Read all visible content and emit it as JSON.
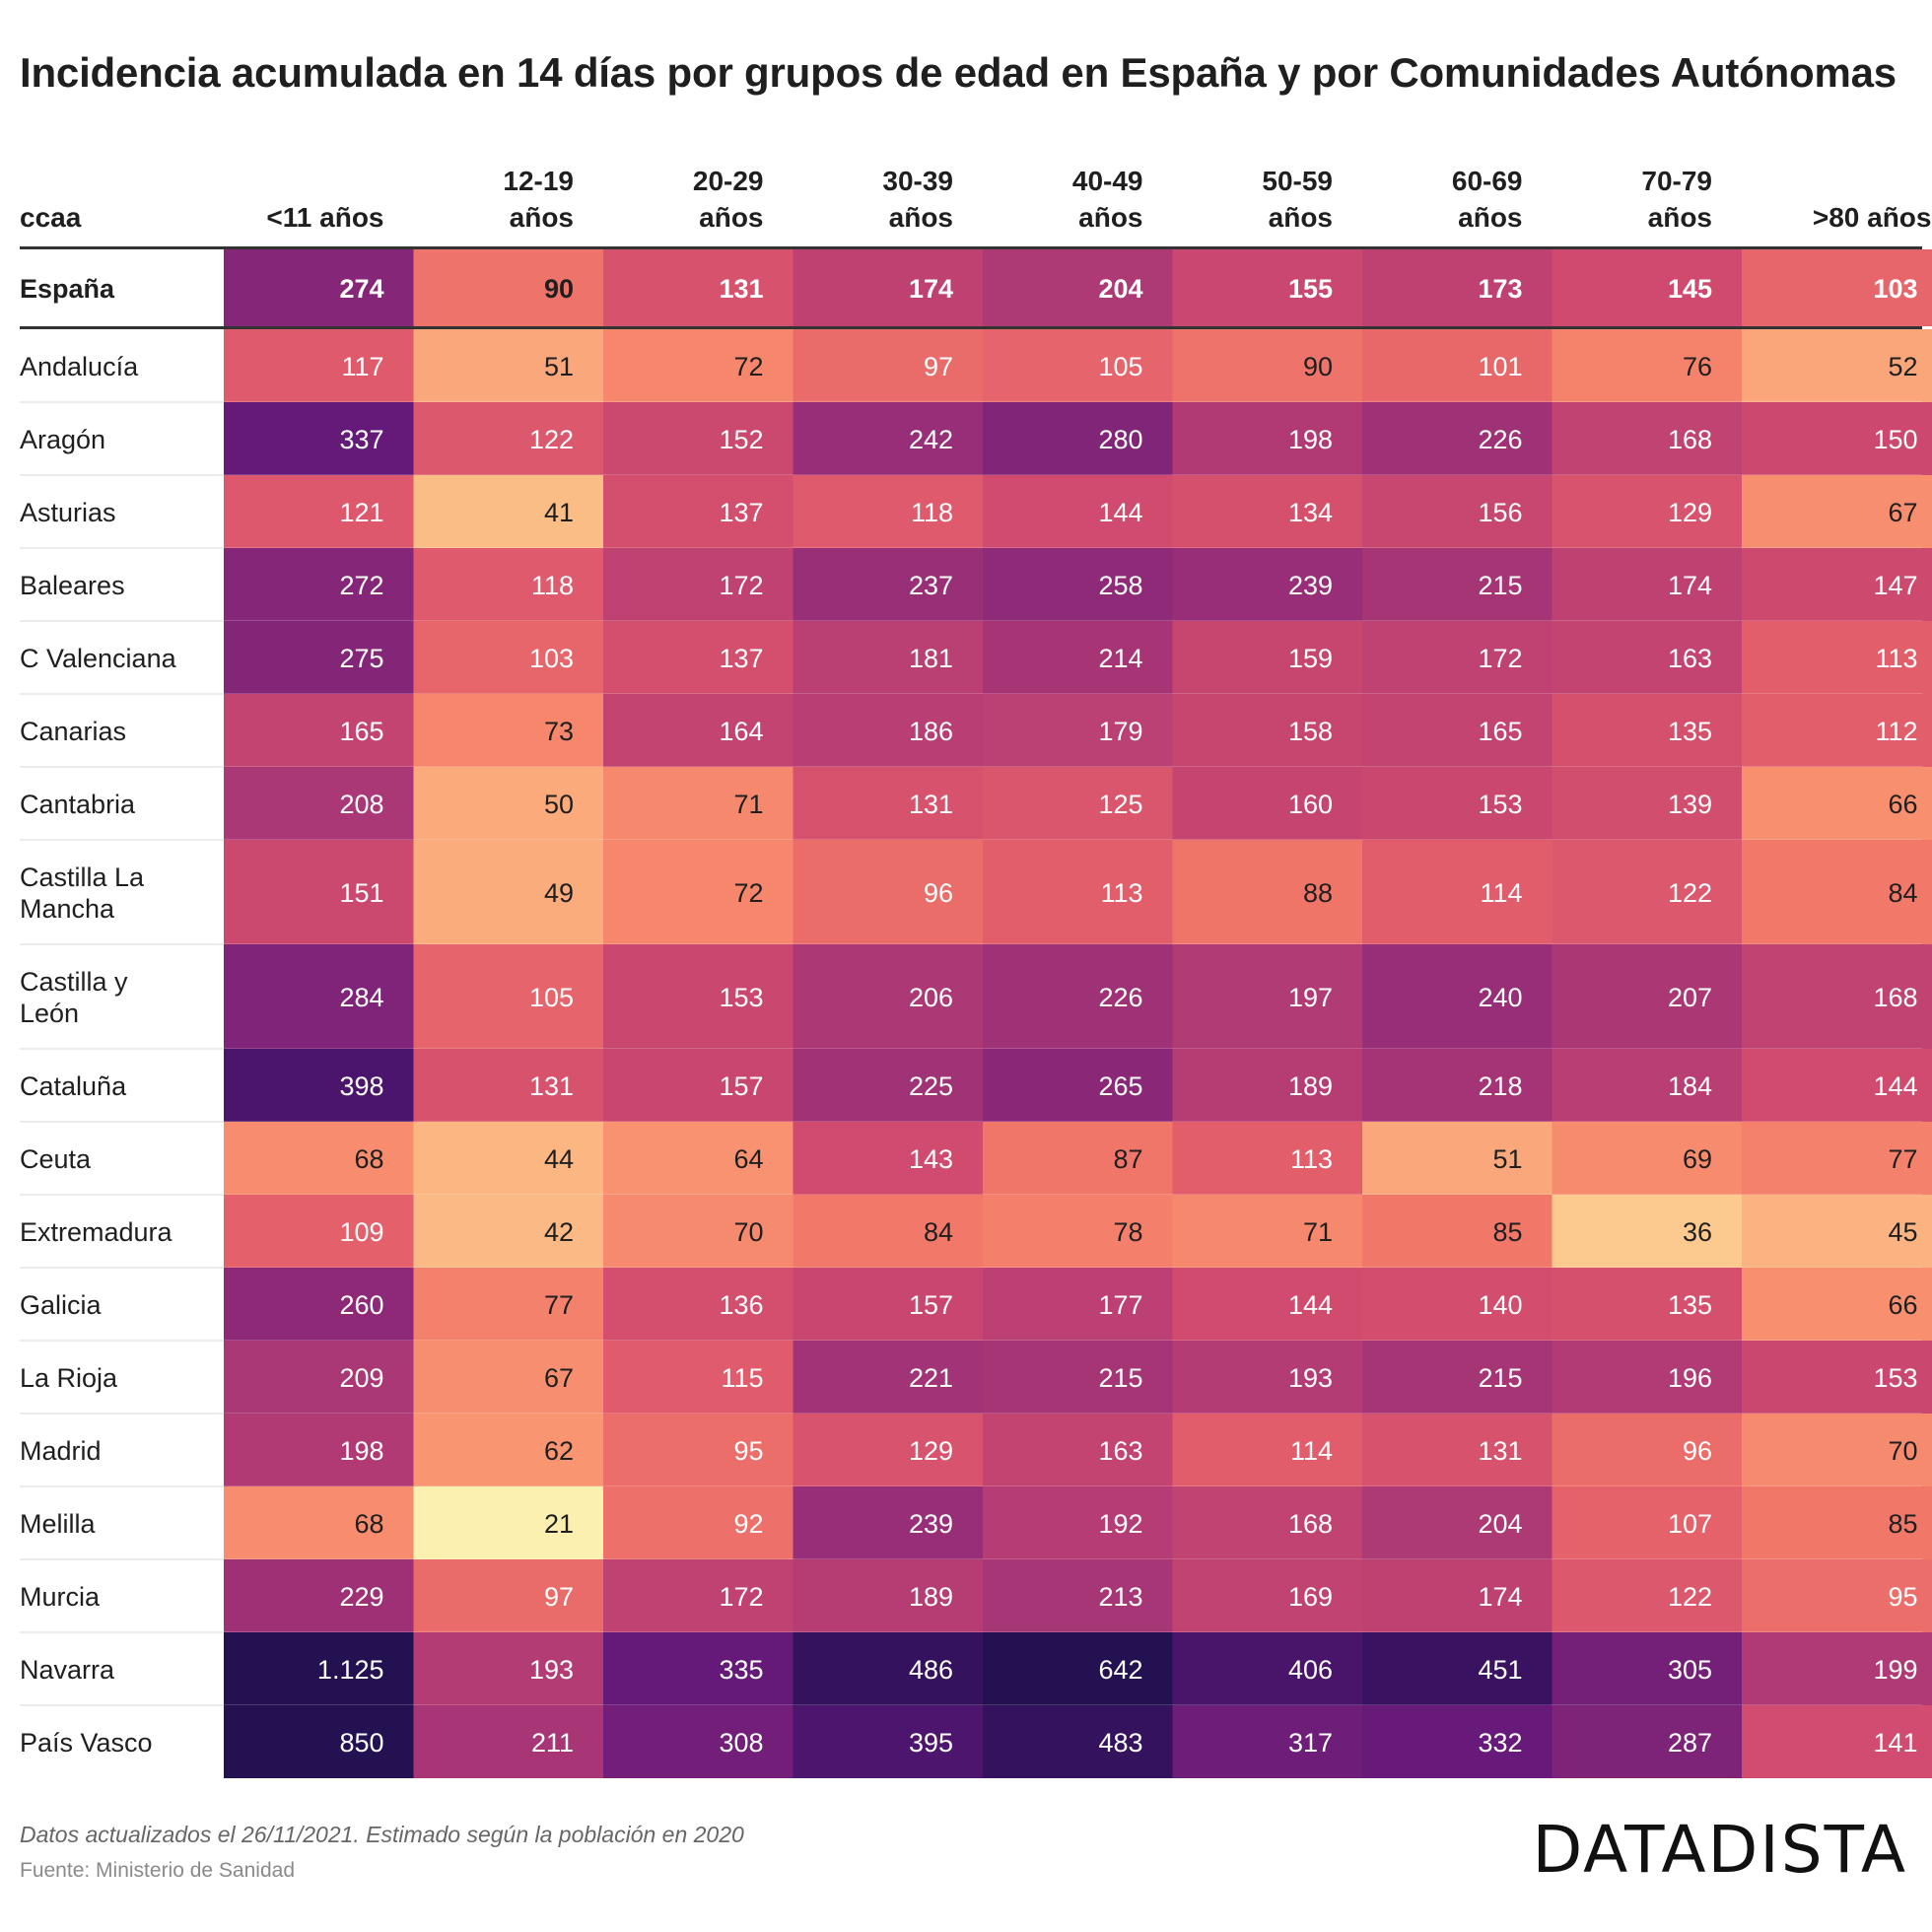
{
  "title": "Incidencia acumulada en 14 días por grupos de edad en España y por Comunidades Autónomas",
  "footer": {
    "note": "Datos actualizados el 26/11/2021. Estimado según la población en 2020",
    "source": "Fuente: Ministerio de Sanidad",
    "logo": "DATADISTA"
  },
  "chart_data": {
    "type": "heatmap",
    "row_header": "ccaa",
    "columns": [
      [
        "<11 años"
      ],
      [
        "12-19",
        "años"
      ],
      [
        "20-29",
        "años"
      ],
      [
        "30-39",
        "años"
      ],
      [
        "40-49",
        "años"
      ],
      [
        "50-59",
        "años"
      ],
      [
        "60-69",
        "años"
      ],
      [
        "70-79",
        "años"
      ],
      [
        ">80 años"
      ]
    ],
    "colors": [
      "#fcf3b3",
      "#fde4a2",
      "#fccb8f",
      "#fbb07f",
      "#f99571",
      "#f37b69",
      "#e4606b",
      "#cf4a6e",
      "#b43c75",
      "#8f2a77",
      "#63197a",
      "#3a1262",
      "#241152"
    ],
    "total_row": {
      "label": [
        "España"
      ],
      "values": [
        274,
        90,
        131,
        174,
        204,
        155,
        173,
        145,
        103
      ],
      "display": [
        "274",
        "90",
        "131",
        "174",
        "204",
        "155",
        "173",
        "145",
        "103"
      ]
    },
    "rows": [
      {
        "label": [
          "Andalucía"
        ],
        "values": [
          117,
          51,
          72,
          97,
          105,
          90,
          101,
          76,
          52
        ],
        "display": [
          "117",
          "51",
          "72",
          "97",
          "105",
          "90",
          "101",
          "76",
          "52"
        ]
      },
      {
        "label": [
          "Aragón"
        ],
        "values": [
          337,
          122,
          152,
          242,
          280,
          198,
          226,
          168,
          150
        ],
        "display": [
          "337",
          "122",
          "152",
          "242",
          "280",
          "198",
          "226",
          "168",
          "150"
        ]
      },
      {
        "label": [
          "Asturias"
        ],
        "values": [
          121,
          41,
          137,
          118,
          144,
          134,
          156,
          129,
          67
        ],
        "display": [
          "121",
          "41",
          "137",
          "118",
          "144",
          "134",
          "156",
          "129",
          "67"
        ]
      },
      {
        "label": [
          "Baleares"
        ],
        "values": [
          272,
          118,
          172,
          237,
          258,
          239,
          215,
          174,
          147
        ],
        "display": [
          "272",
          "118",
          "172",
          "237",
          "258",
          "239",
          "215",
          "174",
          "147"
        ]
      },
      {
        "label": [
          "C Valenciana"
        ],
        "values": [
          275,
          103,
          137,
          181,
          214,
          159,
          172,
          163,
          113
        ],
        "display": [
          "275",
          "103",
          "137",
          "181",
          "214",
          "159",
          "172",
          "163",
          "113"
        ]
      },
      {
        "label": [
          "Canarias"
        ],
        "values": [
          165,
          73,
          164,
          186,
          179,
          158,
          165,
          135,
          112
        ],
        "display": [
          "165",
          "73",
          "164",
          "186",
          "179",
          "158",
          "165",
          "135",
          "112"
        ]
      },
      {
        "label": [
          "Cantabria"
        ],
        "values": [
          208,
          50,
          71,
          131,
          125,
          160,
          153,
          139,
          66
        ],
        "display": [
          "208",
          "50",
          "71",
          "131",
          "125",
          "160",
          "153",
          "139",
          "66"
        ]
      },
      {
        "label": [
          "Castilla La",
          "Mancha"
        ],
        "values": [
          151,
          49,
          72,
          96,
          113,
          88,
          114,
          122,
          84
        ],
        "display": [
          "151",
          "49",
          "72",
          "96",
          "113",
          "88",
          "114",
          "122",
          "84"
        ]
      },
      {
        "label": [
          "Castilla y",
          "León"
        ],
        "values": [
          284,
          105,
          153,
          206,
          226,
          197,
          240,
          207,
          168
        ],
        "display": [
          "284",
          "105",
          "153",
          "206",
          "226",
          "197",
          "240",
          "207",
          "168"
        ]
      },
      {
        "label": [
          "Cataluña"
        ],
        "values": [
          398,
          131,
          157,
          225,
          265,
          189,
          218,
          184,
          144
        ],
        "display": [
          "398",
          "131",
          "157",
          "225",
          "265",
          "189",
          "218",
          "184",
          "144"
        ]
      },
      {
        "label": [
          "Ceuta"
        ],
        "values": [
          68,
          44,
          64,
          143,
          87,
          113,
          51,
          69,
          77
        ],
        "display": [
          "68",
          "44",
          "64",
          "143",
          "87",
          "113",
          "51",
          "69",
          "77"
        ]
      },
      {
        "label": [
          "Extremadura"
        ],
        "values": [
          109,
          42,
          70,
          84,
          78,
          71,
          85,
          36,
          45
        ],
        "display": [
          "109",
          "42",
          "70",
          "84",
          "78",
          "71",
          "85",
          "36",
          "45"
        ]
      },
      {
        "label": [
          "Galicia"
        ],
        "values": [
          260,
          77,
          136,
          157,
          177,
          144,
          140,
          135,
          66
        ],
        "display": [
          "260",
          "77",
          "136",
          "157",
          "177",
          "144",
          "140",
          "135",
          "66"
        ]
      },
      {
        "label": [
          "La Rioja"
        ],
        "values": [
          209,
          67,
          115,
          221,
          215,
          193,
          215,
          196,
          153
        ],
        "display": [
          "209",
          "67",
          "115",
          "221",
          "215",
          "193",
          "215",
          "196",
          "153"
        ]
      },
      {
        "label": [
          "Madrid"
        ],
        "values": [
          198,
          62,
          95,
          129,
          163,
          114,
          131,
          96,
          70
        ],
        "display": [
          "198",
          "62",
          "95",
          "129",
          "163",
          "114",
          "131",
          "96",
          "70"
        ]
      },
      {
        "label": [
          "Melilla"
        ],
        "values": [
          68,
          21,
          92,
          239,
          192,
          168,
          204,
          107,
          85
        ],
        "display": [
          "68",
          "21",
          "92",
          "239",
          "192",
          "168",
          "204",
          "107",
          "85"
        ]
      },
      {
        "label": [
          "Murcia"
        ],
        "values": [
          229,
          97,
          172,
          189,
          213,
          169,
          174,
          122,
          95
        ],
        "display": [
          "229",
          "97",
          "172",
          "189",
          "213",
          "169",
          "174",
          "122",
          "95"
        ]
      },
      {
        "label": [
          "Navarra"
        ],
        "values": [
          1125,
          193,
          335,
          486,
          642,
          406,
          451,
          305,
          199
        ],
        "display": [
          "1.125",
          "193",
          "335",
          "486",
          "642",
          "406",
          "451",
          "305",
          "199"
        ]
      },
      {
        "label": [
          "País Vasco"
        ],
        "values": [
          850,
          211,
          308,
          395,
          483,
          317,
          332,
          287,
          141
        ],
        "display": [
          "850",
          "211",
          "308",
          "395",
          "483",
          "317",
          "332",
          "287",
          "141"
        ]
      }
    ]
  }
}
